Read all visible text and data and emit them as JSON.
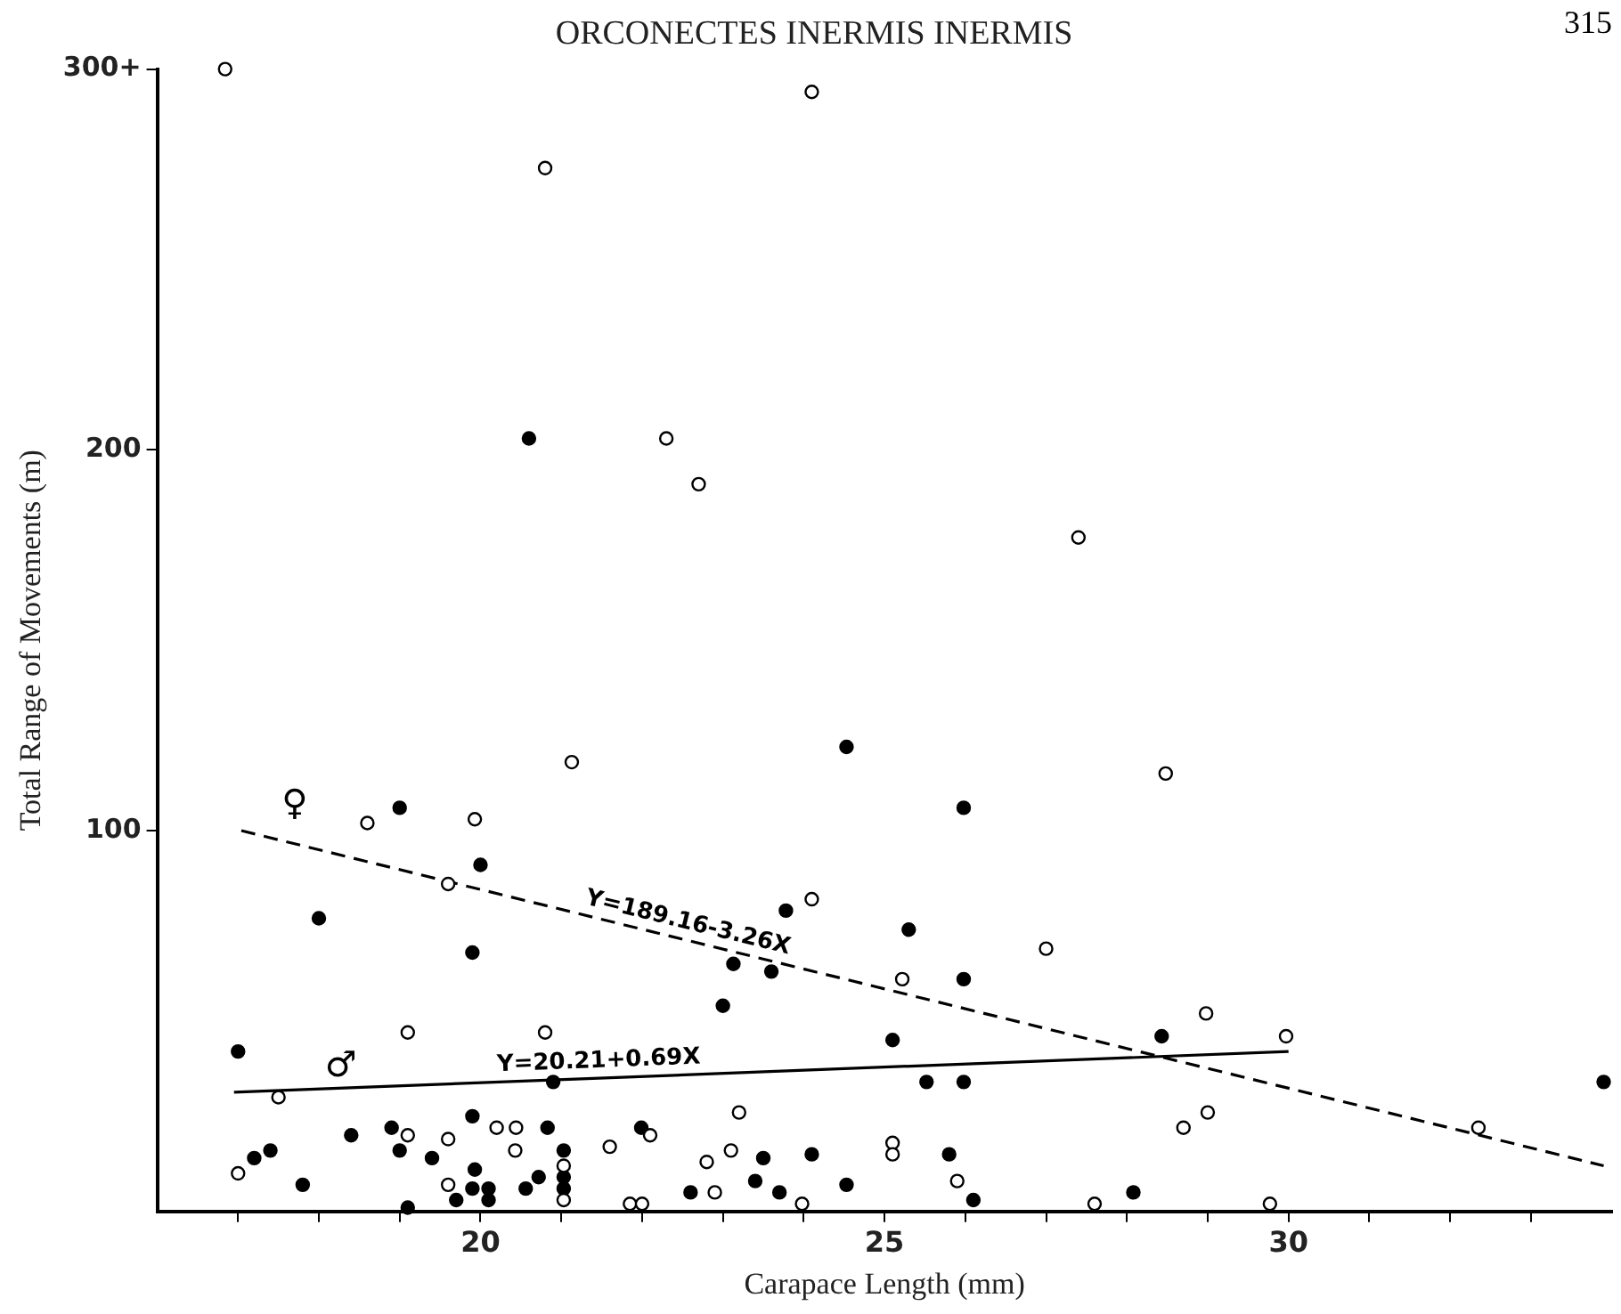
{
  "chart_data": {
    "type": "scatter",
    "title": "ORCONECTES INERMIS INERMIS",
    "xlabel": "Carapace Length (mm)",
    "ylabel": "Total Range of Movements (m)",
    "xlim": [
      16,
      34
    ],
    "ylim": [
      0,
      300
    ],
    "xticks": [
      {
        "value": 17,
        "label": null
      },
      {
        "value": 18,
        "label": null
      },
      {
        "value": 19,
        "label": null
      },
      20,
      {
        "value": 21,
        "label": null
      },
      {
        "value": 22,
        "label": null
      },
      {
        "value": 23,
        "label": null
      },
      {
        "value": 24,
        "label": null
      },
      25,
      {
        "value": 26,
        "label": null
      },
      {
        "value": 27,
        "label": null
      },
      {
        "value": 28,
        "label": null
      },
      {
        "value": 29,
        "label": null
      },
      30,
      {
        "value": 31,
        "label": null
      },
      {
        "value": 32,
        "label": null
      },
      {
        "value": 33,
        "label": null
      }
    ],
    "yticks": [
      100,
      200,
      {
        "value": 300,
        "label": "300+"
      }
    ],
    "legend": false,
    "marker": "circle",
    "series": [
      {
        "color": "#ffffff",
        "x": [
          16.84,
          24.1,
          20.8,
          22.3,
          22.7,
          27.4,
          28.48,
          21.13,
          18.6,
          19.93,
          19.6,
          24.1,
          19.1,
          20.8,
          17.5,
          23.2,
          19.1,
          19.6,
          20.2,
          20.44,
          20.43,
          21.6,
          22.1,
          23.1,
          22.8,
          17.0,
          19.6,
          21.03,
          21.03,
          21.85,
          22.0,
          22.9,
          23.98,
          25.1,
          25.1,
          27.0,
          25.22,
          28.98,
          29.97,
          29.0,
          28.7,
          32.35,
          25.9,
          27.6,
          29.77
        ],
        "values": [
          300,
          294,
          274,
          203,
          191,
          177,
          115,
          118,
          102,
          103,
          86,
          82,
          47,
          47,
          30,
          26,
          20,
          19,
          22,
          22,
          16,
          17,
          20,
          16,
          13,
          10,
          7,
          12,
          3,
          2,
          2,
          5,
          2,
          18,
          15,
          69,
          61,
          52,
          46,
          26,
          22,
          22,
          8,
          2,
          2
        ]
      },
      {
        "color": "#000000",
        "x": [
          20.6,
          24.53,
          19.0,
          20.0,
          18.0,
          19.9,
          23.78,
          23.13,
          23.6,
          23.0,
          17.0,
          20.9,
          19.9,
          18.4,
          18.9,
          19.0,
          19.4,
          20.83,
          21.03,
          21.99,
          17.2,
          17.4,
          17.8,
          19.93,
          21.03,
          21.03,
          19.9,
          20.1,
          20.1,
          20.56,
          20.72,
          19.7,
          19.1,
          23.5,
          24.1,
          23.4,
          23.7,
          24.53,
          22.6,
          25.98,
          25.3,
          25.98,
          25.1,
          28.43,
          25.52,
          25.98,
          25.8,
          28.08,
          26.1,
          33.9
        ],
        "values": [
          203,
          122,
          106,
          91,
          77,
          68,
          79,
          65,
          63,
          54,
          42,
          34,
          25,
          20,
          22,
          16,
          14,
          22,
          16,
          22,
          14,
          16,
          7,
          11,
          9,
          6,
          6,
          6,
          3,
          6,
          9,
          3,
          1,
          14,
          15,
          8,
          5,
          7,
          5,
          106,
          74,
          61,
          45,
          46,
          34,
          34,
          15,
          5,
          3,
          34
        ]
      },
      {
        "type": "line",
        "name": "Y=189.16-3.26X",
        "color": "#000000",
        "line_style": "dashed",
        "marker": "none",
        "x": [
          17.04,
          33.9
        ],
        "values": [
          100,
          12
        ]
      },
      {
        "type": "line",
        "name": "Y=20.21+0.69X",
        "color": "#000000",
        "line_style": "solid",
        "marker": "none",
        "x": [
          16.95,
          30.0
        ],
        "values": [
          31.3,
          42.0
        ]
      }
    ],
    "annotations": [
      "♀",
      "♂",
      "315"
    ]
  }
}
